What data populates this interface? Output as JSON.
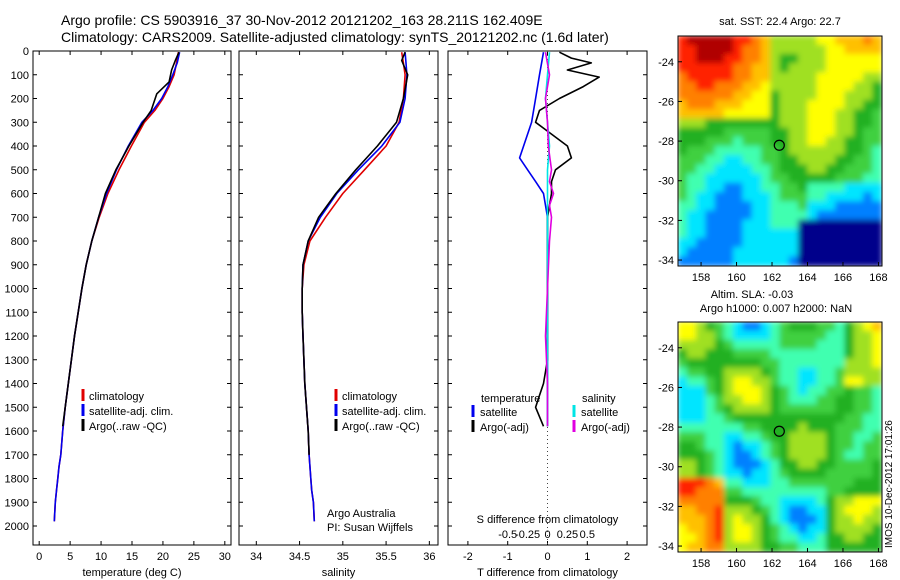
{
  "header": {
    "title_line1": "Argo profile: CS 5903916_37 30-Nov-2012 20121202_163 28.211S 162.409E",
    "title_line2": "Climatology: CARS2009. Satellite-adjusted climatology: synTS_20121202.nc (1.6d later)"
  },
  "side_stamp": "IMOS 10-Dec-2012 17:01:26",
  "colors": {
    "climatology": "#e00000",
    "satellite": "#0000ee",
    "argo": "#000000",
    "cyan": "#00e5e5",
    "magenta": "#e000e0"
  },
  "chart_data": [
    {
      "type": "line",
      "id": "temperature",
      "xlabel": "temperature (deg C)",
      "ylabel": "",
      "xlim": [
        -1,
        31
      ],
      "xticks": [
        0,
        5,
        10,
        15,
        20,
        25,
        30
      ],
      "ylim": [
        0,
        2080
      ],
      "yticks": [
        0,
        100,
        200,
        300,
        400,
        500,
        600,
        700,
        800,
        900,
        1000,
        1100,
        1200,
        1300,
        1400,
        1500,
        1600,
        1700,
        1800,
        1900,
        2000
      ],
      "legend": [
        "climatology",
        "satellite-adj. clim.",
        "Argo(..raw -QC)"
      ],
      "series": [
        {
          "name": "climatology",
          "color": "#e00000",
          "x": [
            22.5,
            22.2,
            21.8,
            21.0,
            20.0,
            18.7,
            17.0,
            14.9,
            12.9,
            11.1,
            9.7,
            8.5,
            7.6,
            6.9,
            6.3,
            5.7,
            5.2,
            4.7,
            4.2,
            3.8,
            3.5,
            3.2,
            3.0,
            2.8,
            2.6,
            2.45
          ],
          "y": [
            5,
            50,
            100,
            150,
            200,
            250,
            300,
            400,
            500,
            600,
            700,
            800,
            900,
            1000,
            1100,
            1200,
            1300,
            1400,
            1500,
            1600,
            1700,
            1750,
            1800,
            1850,
            1900,
            1980
          ]
        },
        {
          "name": "satellite-adj. clim.",
          "color": "#0000ee",
          "x": [
            22.7,
            22.3,
            21.6,
            20.8,
            19.8,
            18.4,
            16.6,
            14.4,
            12.5,
            10.9,
            9.6,
            8.5,
            7.6,
            6.9,
            6.3,
            5.7,
            5.2,
            4.7,
            4.2,
            3.8,
            3.5,
            3.2,
            3.0,
            2.8,
            2.6,
            2.45
          ],
          "y": [
            5,
            50,
            100,
            150,
            200,
            250,
            300,
            400,
            500,
            600,
            700,
            800,
            900,
            1000,
            1100,
            1200,
            1300,
            1400,
            1500,
            1600,
            1700,
            1750,
            1800,
            1850,
            1900,
            1980
          ]
        },
        {
          "name": "Argo(..raw -QC)",
          "color": "#000000",
          "x": [
            22.6,
            22.0,
            21.4,
            21.0,
            19.0,
            18.1,
            16.8,
            14.5,
            12.4,
            10.7,
            9.6,
            8.5,
            7.6,
            6.9,
            6.3,
            5.7,
            5.2,
            4.7,
            4.2,
            3.8
          ],
          "y": [
            5,
            40,
            80,
            130,
            180,
            250,
            300,
            400,
            500,
            600,
            700,
            800,
            900,
            1000,
            1100,
            1200,
            1300,
            1400,
            1500,
            1580
          ]
        }
      ]
    },
    {
      "type": "line",
      "id": "salinity",
      "xlabel": "salinity",
      "ylabel": "",
      "xlim": [
        33.8,
        36.1
      ],
      "xticks": [
        34,
        34.5,
        35,
        35.5,
        36
      ],
      "ylim": [
        0,
        2080
      ],
      "legend": [
        "climatology",
        "satellite-adj. clim.",
        "Argo(..raw -QC)"
      ],
      "annotation": [
        "Argo Australia",
        "PI: Susan Wijffels"
      ],
      "series": [
        {
          "name": "climatology",
          "color": "#e00000",
          "x": [
            35.68,
            35.7,
            35.72,
            35.7,
            35.65,
            35.5,
            35.25,
            35.0,
            34.8,
            34.62,
            34.55,
            34.53,
            34.53,
            34.54,
            34.55,
            34.56,
            34.58,
            34.6,
            34.61,
            34.63,
            34.64,
            34.66,
            34.67
          ],
          "y": [
            5,
            50,
            100,
            200,
            300,
            400,
            500,
            600,
            700,
            800,
            900,
            1000,
            1100,
            1200,
            1300,
            1400,
            1500,
            1600,
            1700,
            1800,
            1850,
            1900,
            1980
          ]
        },
        {
          "name": "satellite-adj. clim.",
          "color": "#0000ee",
          "x": [
            35.72,
            35.73,
            35.74,
            35.72,
            35.66,
            35.45,
            35.18,
            34.93,
            34.74,
            34.6,
            34.54,
            34.53,
            34.53,
            34.54,
            34.55,
            34.56,
            34.58,
            34.6,
            34.61,
            34.63,
            34.64,
            34.66,
            34.67
          ],
          "y": [
            5,
            50,
            100,
            200,
            300,
            400,
            500,
            600,
            700,
            800,
            900,
            1000,
            1100,
            1200,
            1300,
            1400,
            1500,
            1600,
            1700,
            1800,
            1850,
            1900,
            1980
          ]
        },
        {
          "name": "Argo(..raw -QC)",
          "color": "#000000",
          "x": [
            35.72,
            35.68,
            35.75,
            35.7,
            35.62,
            35.4,
            35.15,
            34.92,
            34.72,
            34.6,
            34.54,
            34.53,
            34.53,
            34.54,
            34.55,
            34.56,
            34.58,
            34.6,
            34.61
          ],
          "y": [
            5,
            40,
            100,
            200,
            300,
            400,
            500,
            600,
            700,
            800,
            900,
            1000,
            1100,
            1200,
            1300,
            1400,
            1500,
            1600,
            1700
          ]
        }
      ]
    },
    {
      "type": "line",
      "id": "difference",
      "xlabel": "T difference from climatology",
      "xlabel_top": "S difference from climatology",
      "xlim": [
        -2.5,
        2.5
      ],
      "xticks": [
        -2,
        -1,
        0,
        1,
        2
      ],
      "top_ticks": [
        "-0.5",
        "-0.25",
        "0",
        "0.25",
        "0.5"
      ],
      "ylim": [
        0,
        2080
      ],
      "legend": {
        "temperature_title": "temperature",
        "salinity_title": "salinity",
        "items": [
          "satellite",
          "Argo(-adj)",
          "satellite",
          "Argo(-adj)"
        ]
      },
      "series": [
        {
          "name": "satellite",
          "group": "temperature",
          "color": "#0000ee",
          "x": [
            -0.1,
            -0.2,
            -0.3,
            -0.4,
            -0.6,
            -0.7,
            -0.5,
            -0.3,
            -0.1,
            0.0,
            0.0,
            0.0,
            0.0,
            0.0,
            0.0
          ],
          "y": [
            5,
            100,
            200,
            300,
            400,
            450,
            500,
            550,
            600,
            700,
            900,
            1100,
            1300,
            1500,
            1580
          ]
        },
        {
          "name": "Argo(-adj)",
          "group": "temperature",
          "color": "#000000",
          "x": [
            0.3,
            0.6,
            1.1,
            0.5,
            1.3,
            0.9,
            0.3,
            -0.2,
            -0.3,
            0.1,
            0.5,
            0.6,
            0.2,
            0.1,
            0.1,
            0.0,
            0.0,
            0.0,
            0.0,
            -0.1,
            -0.2,
            -0.3,
            -0.1
          ],
          "y": [
            5,
            30,
            50,
            80,
            110,
            150,
            200,
            250,
            300,
            350,
            400,
            450,
            500,
            550,
            600,
            700,
            900,
            1100,
            1300,
            1400,
            1450,
            1500,
            1580
          ]
        },
        {
          "name": "satellite",
          "group": "salinity",
          "color": "#00e5e5",
          "x": [
            0.05,
            0.0,
            -0.05,
            0.0,
            0.05,
            0.0,
            0.0,
            0.0,
            0.0,
            0.0,
            0.0,
            0.0,
            0.0,
            0.0,
            0.0
          ],
          "y": [
            5,
            100,
            200,
            300,
            400,
            500,
            600,
            700,
            800,
            1000,
            1200,
            1400,
            1500,
            1550,
            1580
          ]
        },
        {
          "name": "Argo(-adj)",
          "group": "salinity",
          "color": "#e000e0",
          "x": [
            -0.05,
            0.05,
            -0.05,
            0.0,
            0.02,
            0.1,
            0.05,
            0.15,
            0.05,
            0.1,
            0.05,
            0.0,
            -0.05,
            0.0,
            0.0
          ],
          "y": [
            5,
            100,
            200,
            300,
            400,
            500,
            550,
            600,
            650,
            700,
            800,
            1000,
            1200,
            1400,
            1580
          ]
        }
      ]
    },
    {
      "type": "heatmap",
      "id": "sst-map",
      "title": "sat. SST: 22.4 Argo: 22.7",
      "xlim": [
        156.7,
        168.2
      ],
      "xticks": [
        158,
        160,
        162,
        164,
        166,
        168
      ],
      "ylim": [
        -34.3,
        -22.7
      ],
      "yticks": [
        -24,
        -26,
        -28,
        -30,
        -32,
        -34
      ],
      "argo_position": [
        162.41,
        -28.21
      ]
    },
    {
      "type": "heatmap",
      "id": "sla-map",
      "title": "Altim. SLA: -0.03",
      "subtitle": "Argo h1000: 0.007 h2000: NaN",
      "xlim": [
        156.7,
        168.2
      ],
      "xticks": [
        158,
        160,
        162,
        164,
        166,
        168
      ],
      "ylim": [
        -34.3,
        -22.7
      ],
      "yticks": [
        -24,
        -26,
        -28,
        -30,
        -32,
        -34
      ],
      "argo_position": [
        162.41,
        -28.21
      ]
    }
  ]
}
